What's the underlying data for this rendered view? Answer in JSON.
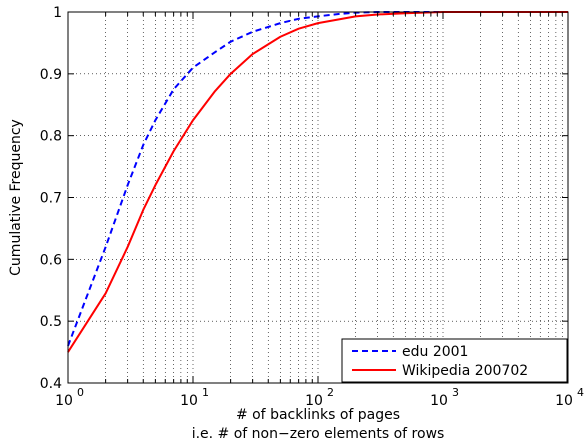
{
  "chart_data": {
    "type": "line",
    "xscale": "log",
    "xlim": [
      1,
      10000
    ],
    "ylim": [
      0.4,
      1
    ],
    "grid": true,
    "legend_position": "bottom-right",
    "xlabel": "# of backlinks of pages",
    "xlabel_line2": "i.e. # of non−zero elements of rows",
    "ylabel": "Cumulative Frequency",
    "x_tick_values": [
      1,
      10,
      100,
      1000,
      10000
    ],
    "x_tick_labels": [
      {
        "base": "10",
        "exp": "0"
      },
      {
        "base": "10",
        "exp": "1"
      },
      {
        "base": "10",
        "exp": "2"
      },
      {
        "base": "10",
        "exp": "3"
      },
      {
        "base": "10",
        "exp": "4"
      }
    ],
    "y_tick_values": [
      0.4,
      0.5,
      0.6,
      0.7,
      0.8,
      0.9,
      1
    ],
    "y_tick_labels": [
      "0.4",
      "0.5",
      "0.6",
      "0.7",
      "0.8",
      "0.9",
      "1"
    ],
    "series": [
      {
        "name": "edu 2001",
        "color": "#0000ff",
        "style": "dashed",
        "x": [
          1,
          2,
          3,
          4,
          5,
          7,
          10,
          15,
          20,
          30,
          50,
          70,
          100,
          150,
          200,
          300,
          500,
          1000,
          10000
        ],
        "y": [
          0.46,
          0.62,
          0.72,
          0.785,
          0.825,
          0.875,
          0.91,
          0.935,
          0.952,
          0.968,
          0.982,
          0.989,
          0.993,
          0.997,
          0.999,
          1.0,
          1.0,
          1.0,
          1.0
        ]
      },
      {
        "name": "Wikipedia 200702",
        "color": "#ff0000",
        "style": "solid",
        "x": [
          1,
          2,
          3,
          4,
          5,
          7,
          10,
          15,
          20,
          30,
          50,
          70,
          100,
          200,
          300,
          500,
          700,
          1000,
          2000,
          10000
        ],
        "y": [
          0.45,
          0.545,
          0.62,
          0.68,
          0.72,
          0.775,
          0.825,
          0.872,
          0.9,
          0.932,
          0.96,
          0.973,
          0.982,
          0.993,
          0.996,
          0.998,
          0.999,
          1.0,
          1.0,
          1.0
        ]
      }
    ]
  }
}
